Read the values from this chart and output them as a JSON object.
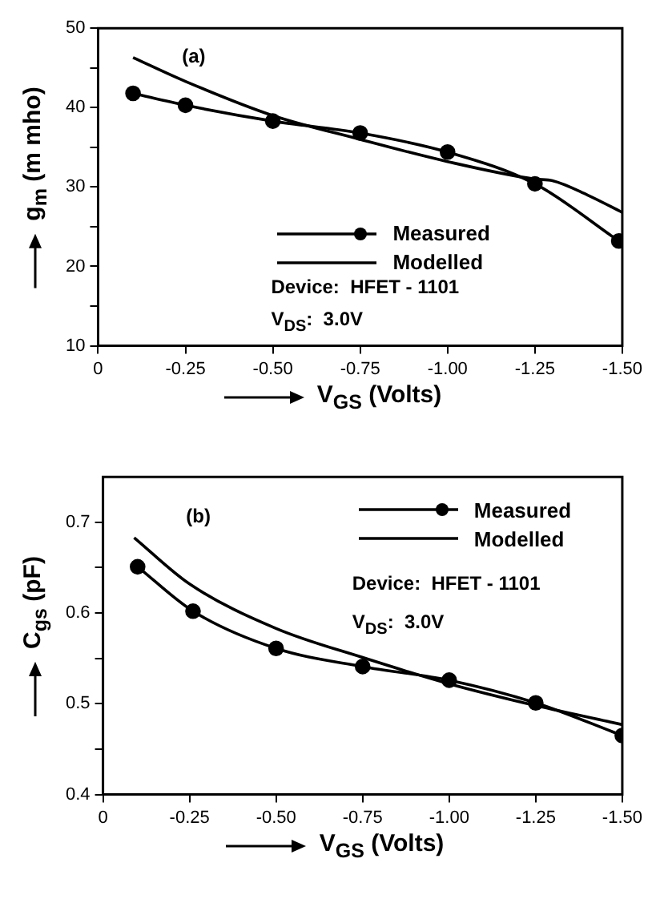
{
  "chart_data": [
    {
      "type": "line",
      "xlabel": "V$_{GS}$ (Volts)",
      "ylabel": "g$_{m}$ (m mho)",
      "xlim": [
        0,
        -1.5
      ],
      "xticks": [
        0,
        -0.25,
        {
          "value": -0.5,
          "label": "-0.50"
        },
        -0.75,
        {
          "value": -1,
          "label": "-1.00"
        },
        -1.25,
        {
          "value": -1.5,
          "label": "-1.50"
        }
      ],
      "ylim": [
        10,
        50
      ],
      "yticks": [
        10,
        {
          "value": 15,
          "label": null
        },
        20,
        {
          "value": 25,
          "label": null
        },
        30,
        {
          "value": 35,
          "label": null
        },
        40,
        {
          "value": 45,
          "label": null
        },
        50
      ],
      "grid": false,
      "legend": "bottom",
      "annotations": [
        "(a)",
        "Device:  HFET - 1101",
        "V$_{DS}$:  3.0V"
      ],
      "series": [
        {
          "name": "Measured",
          "color": "#000000",
          "marker": "circle",
          "x": [
            -0.1,
            -0.25,
            -0.5,
            -0.75,
            -1.0,
            -1.25,
            -1.49
          ],
          "values": [
            41.8,
            40.3,
            38.3,
            36.8,
            34.4,
            30.4,
            23.2
          ]
        },
        {
          "name": "Modelled",
          "color": "#000000",
          "marker": "none",
          "x": [
            -0.1,
            -0.25,
            -0.5,
            -0.75,
            -1.0,
            -1.25,
            -1.3,
            -1.4,
            -1.5
          ],
          "values": [
            46.3,
            43.3,
            39.0,
            36.0,
            33.2,
            31.0,
            30.8,
            29.0,
            26.8
          ]
        }
      ]
    },
    {
      "type": "line",
      "xlabel": "V$_{GS}$ (Volts)",
      "ylabel": "C$_{gs}$ (pF)",
      "xlim": [
        0,
        -1.5
      ],
      "xticks": [
        0,
        -0.25,
        {
          "value": -0.5,
          "label": "-0.50"
        },
        -0.75,
        {
          "value": -1,
          "label": "-1.00"
        },
        -1.25,
        {
          "value": -1.5,
          "label": "-1.50"
        }
      ],
      "ylim": [
        0.4,
        0.75
      ],
      "yticks": [
        0.4,
        {
          "value": 0.45,
          "label": null
        },
        0.5,
        {
          "value": 0.55,
          "label": null
        },
        0.6,
        {
          "value": 0.65,
          "label": null
        },
        0.7
      ],
      "grid": false,
      "legend": "top right",
      "annotations": [
        "(b)",
        "Device:  HFET - 1101",
        "V$_{DS}$:  3.0V"
      ],
      "series": [
        {
          "name": "Measured",
          "color": "#000000",
          "marker": "circle",
          "x": [
            -0.1,
            -0.26,
            -0.5,
            -0.75,
            -1.0,
            -1.25,
            -1.5
          ],
          "values": [
            0.651,
            0.602,
            0.561,
            0.541,
            0.526,
            0.501,
            0.465
          ]
        },
        {
          "name": "Modelled",
          "color": "#000000",
          "marker": "none",
          "x": [
            -0.09,
            -0.25,
            -0.5,
            -0.75,
            -1.0,
            -1.25,
            -1.5
          ],
          "values": [
            0.683,
            0.632,
            0.583,
            0.551,
            0.522,
            0.498,
            0.477
          ]
        }
      ]
    }
  ]
}
